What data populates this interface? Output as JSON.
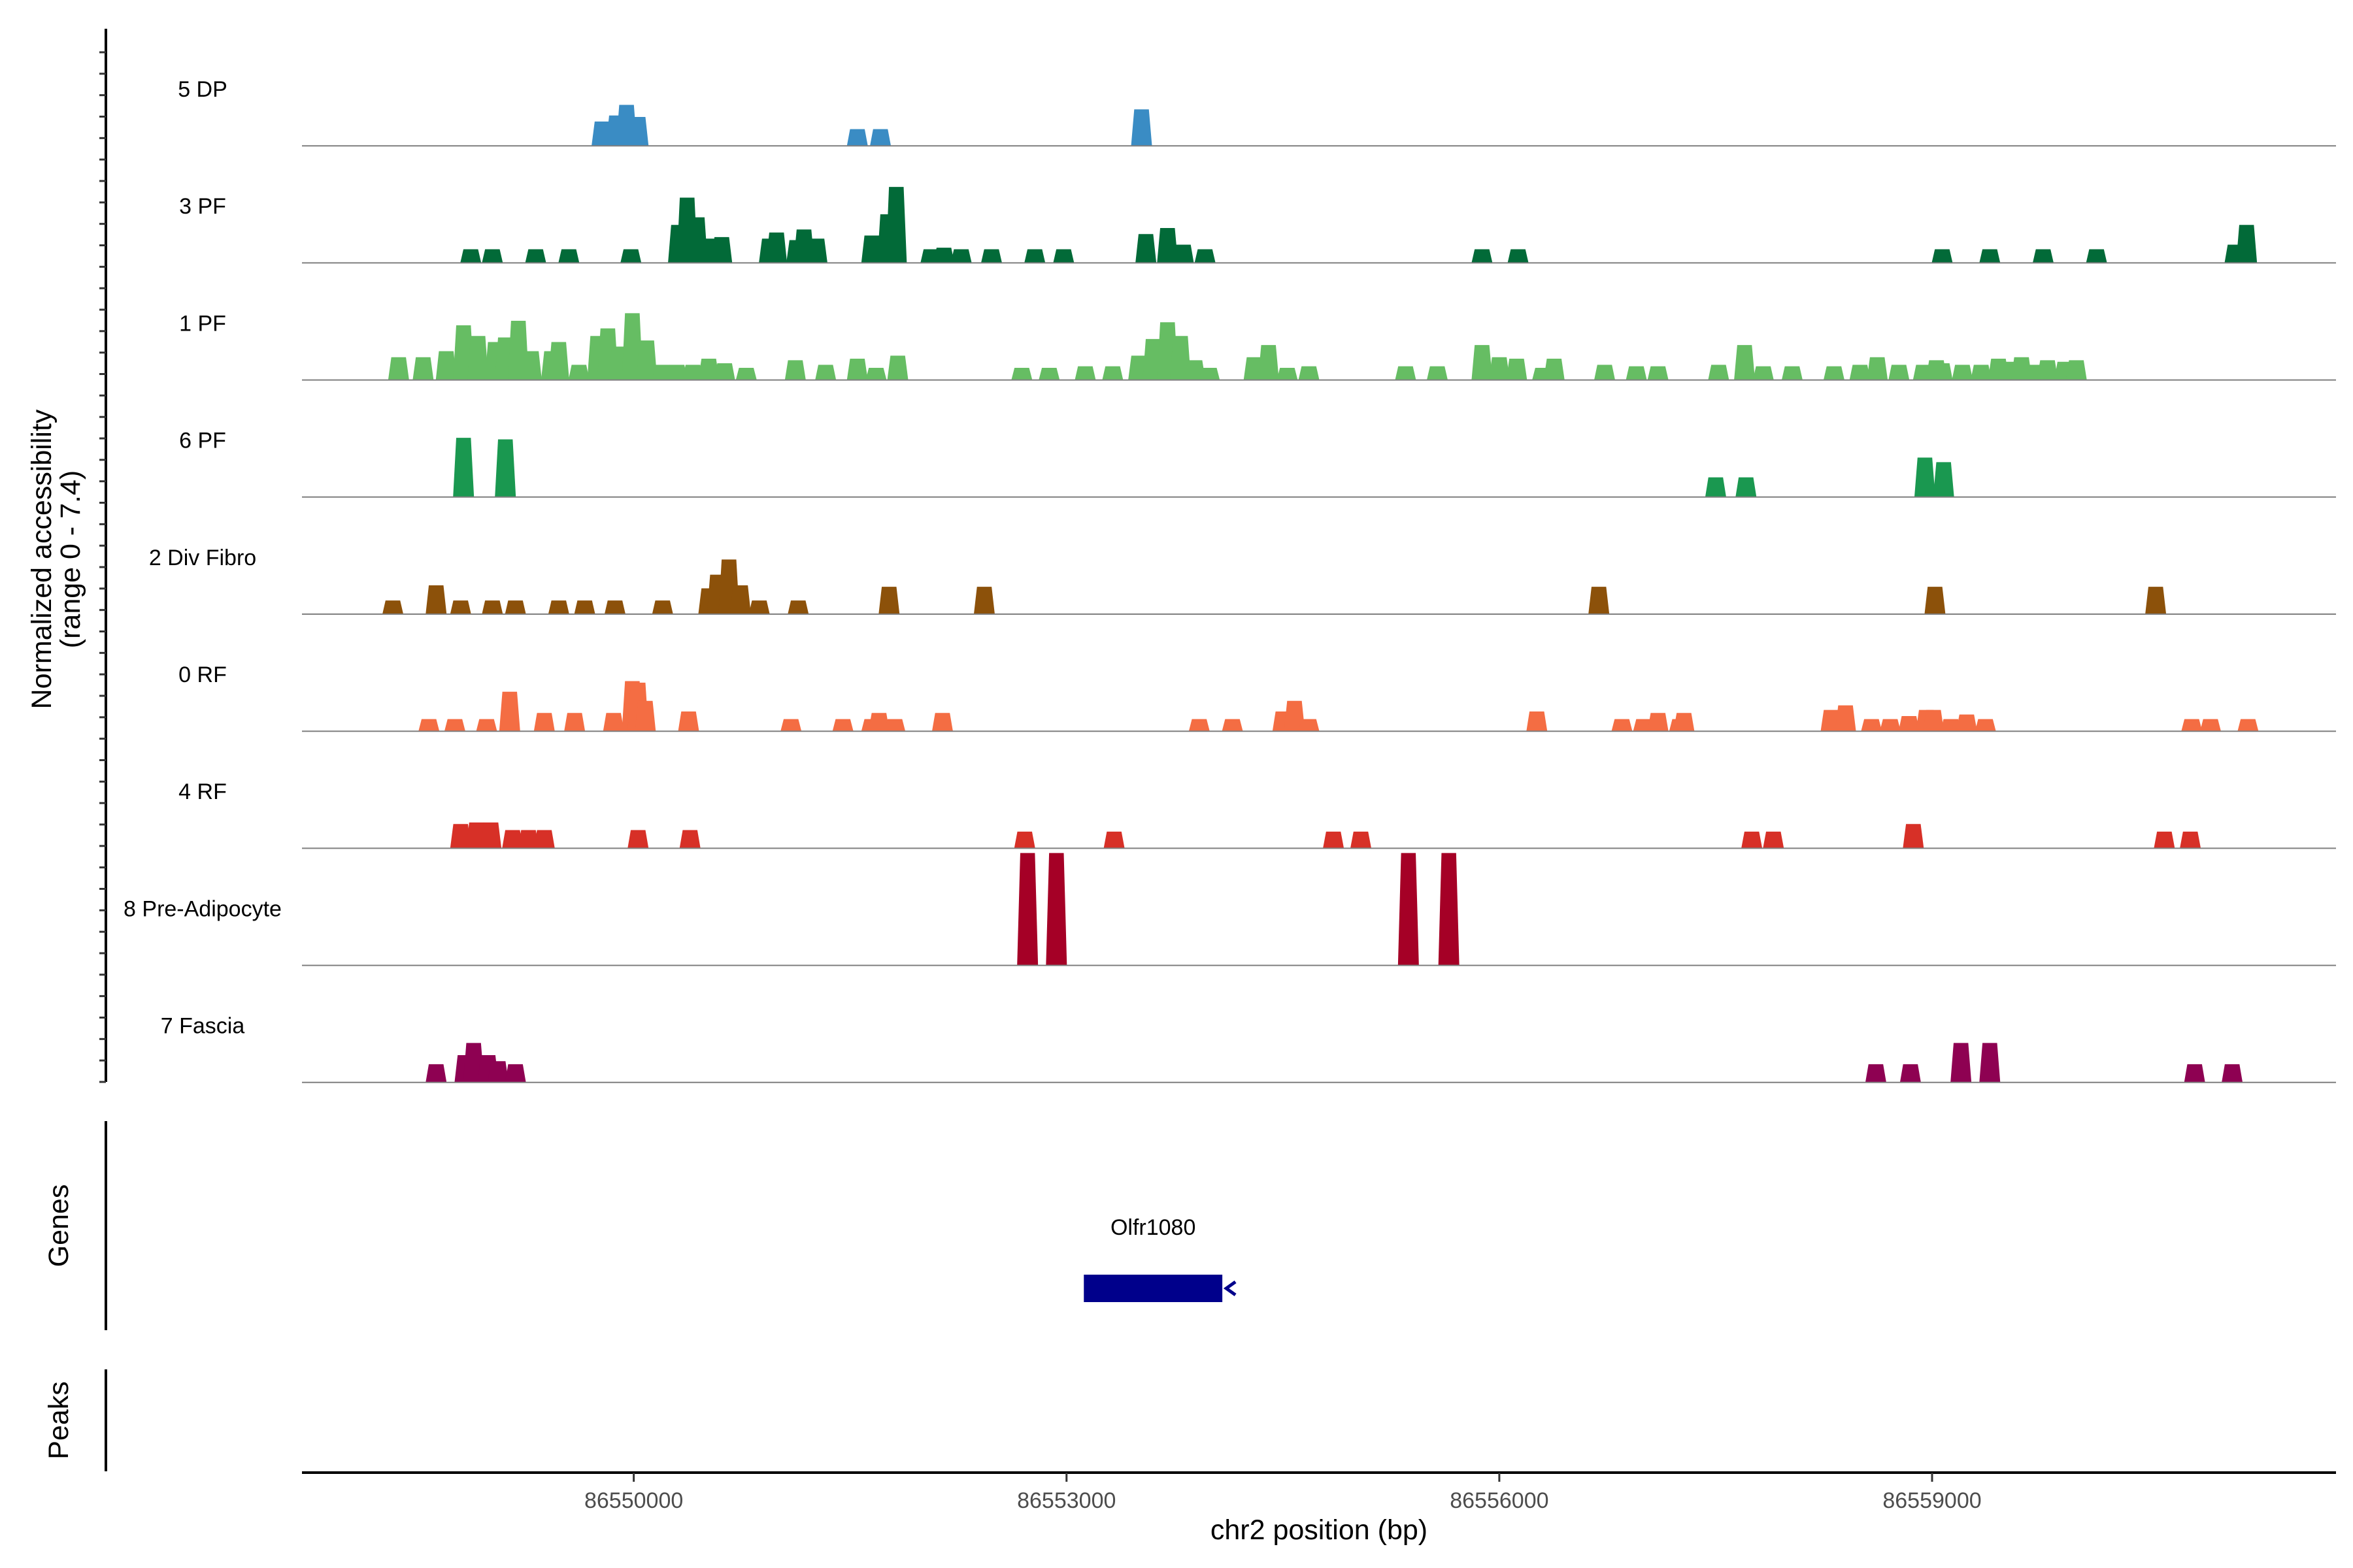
{
  "chart_data": {
    "type": "area",
    "title": "",
    "xlabel": "chr2 position (bp)",
    "ylabel_line1": "Normalized accessibility",
    "ylabel_line2": "(range 0 - 7.4)",
    "genes_axis_label": "Genes",
    "peaks_axis_label": "Peaks",
    "y_range": [
      0,
      7.4
    ],
    "xlim": [
      86547700,
      86561800
    ],
    "x_ticks": [
      86550000,
      86553000,
      86556000,
      86559000
    ],
    "x_tick_labels": [
      "86550000",
      "86553000",
      "86556000",
      "86559000"
    ],
    "gene": {
      "name": "Olfr1080",
      "start": 86553120,
      "end": 86554080,
      "strand": "-"
    },
    "peaks": [],
    "tracks": [
      {
        "name": "5 DP",
        "color": "#3a8cc4",
        "points": [
          [
            86549780,
            1.6
          ],
          [
            86549880,
            2.0
          ],
          [
            86549950,
            2.7
          ],
          [
            86550030,
            1.9
          ],
          [
            86551550,
            1.1
          ],
          [
            86551710,
            1.1
          ],
          [
            86553520,
            2.4
          ]
        ]
      },
      {
        "name": "3 PF",
        "color": "#026a38",
        "points": [
          [
            86548870,
            0.9
          ],
          [
            86549020,
            0.9
          ],
          [
            86549320,
            0.9
          ],
          [
            86549550,
            0.9
          ],
          [
            86549980,
            0.9
          ],
          [
            86550310,
            2.5
          ],
          [
            86550370,
            4.3
          ],
          [
            86550440,
            3.0
          ],
          [
            86550540,
            1.6
          ],
          [
            86550610,
            1.7
          ],
          [
            86550940,
            1.6
          ],
          [
            86550990,
            2.0
          ],
          [
            86551130,
            1.5
          ],
          [
            86551180,
            2.2
          ],
          [
            86551270,
            1.6
          ],
          [
            86551650,
            1.8
          ],
          [
            86551760,
            3.2
          ],
          [
            86551820,
            5.0
          ],
          [
            86552060,
            0.9
          ],
          [
            86552150,
            1.0
          ],
          [
            86552270,
            0.9
          ],
          [
            86552480,
            0.9
          ],
          [
            86552780,
            0.9
          ],
          [
            86552980,
            0.9
          ],
          [
            86553550,
            1.9
          ],
          [
            86553700,
            2.3
          ],
          [
            86553810,
            1.2
          ],
          [
            86553960,
            0.9
          ],
          [
            86555880,
            0.9
          ],
          [
            86556130,
            0.9
          ],
          [
            86559070,
            0.9
          ],
          [
            86559400,
            0.9
          ],
          [
            86559770,
            0.9
          ],
          [
            86560140,
            0.9
          ],
          [
            86561100,
            1.2
          ],
          [
            86561180,
            2.5
          ]
        ]
      },
      {
        "name": "1 PF",
        "color": "#66bd63",
        "points": [
          [
            86548370,
            1.5
          ],
          [
            86548540,
            1.5
          ],
          [
            86548700,
            1.9
          ],
          [
            86548820,
            3.6
          ],
          [
            86548920,
            2.9
          ],
          [
            86549040,
            2.5
          ],
          [
            86549110,
            2.8
          ],
          [
            86549200,
            3.9
          ],
          [
            86549290,
            1.9
          ],
          [
            86549430,
            1.9
          ],
          [
            86549480,
            2.5
          ],
          [
            86549620,
            1.0
          ],
          [
            86549750,
            2.9
          ],
          [
            86549820,
            3.4
          ],
          [
            86549900,
            2.2
          ],
          [
            86549990,
            4.4
          ],
          [
            86550090,
            2.6
          ],
          [
            86550200,
            1.0
          ],
          [
            86550300,
            1.0
          ],
          [
            86550410,
            1.0
          ],
          [
            86550520,
            1.4
          ],
          [
            86550630,
            1.1
          ],
          [
            86550780,
            0.8
          ],
          [
            86551120,
            1.3
          ],
          [
            86551330,
            1.0
          ],
          [
            86551550,
            1.4
          ],
          [
            86551680,
            0.8
          ],
          [
            86551830,
            1.6
          ],
          [
            86552690,
            0.8
          ],
          [
            86552880,
            0.8
          ],
          [
            86553130,
            0.9
          ],
          [
            86553320,
            0.9
          ],
          [
            86553500,
            1.6
          ],
          [
            86553600,
            2.7
          ],
          [
            86553700,
            3.8
          ],
          [
            86553790,
            2.9
          ],
          [
            86553890,
            1.3
          ],
          [
            86553990,
            0.8
          ],
          [
            86554300,
            1.5
          ],
          [
            86554400,
            2.3
          ],
          [
            86554530,
            0.8
          ],
          [
            86554680,
            0.9
          ],
          [
            86555350,
            0.9
          ],
          [
            86555570,
            0.9
          ],
          [
            86555880,
            2.3
          ],
          [
            86556000,
            1.5
          ],
          [
            86556120,
            1.4
          ],
          [
            86556300,
            0.8
          ],
          [
            86556380,
            1.4
          ],
          [
            86556730,
            1.0
          ],
          [
            86556950,
            0.9
          ],
          [
            86557100,
            0.9
          ],
          [
            86557520,
            1.0
          ],
          [
            86557700,
            2.3
          ],
          [
            86557830,
            0.9
          ],
          [
            86558030,
            0.9
          ],
          [
            86558320,
            0.9
          ],
          [
            86558500,
            1.0
          ],
          [
            86558620,
            1.5
          ],
          [
            86558770,
            1.0
          ],
          [
            86558940,
            1.0
          ],
          [
            86559030,
            1.3
          ],
          [
            86559070,
            1.1
          ],
          [
            86559210,
            1.0
          ],
          [
            86559340,
            1.0
          ],
          [
            86559460,
            1.4
          ],
          [
            86559530,
            1.2
          ],
          [
            86559620,
            1.5
          ],
          [
            86559720,
            1.0
          ],
          [
            86559800,
            1.3
          ],
          [
            86559920,
            1.2
          ],
          [
            86560000,
            1.3
          ]
        ]
      },
      {
        "name": "6 PF",
        "color": "#1a9850",
        "points": [
          [
            86548820,
            3.9
          ],
          [
            86549110,
            3.8
          ],
          [
            86557500,
            1.3
          ],
          [
            86557710,
            1.3
          ],
          [
            86558950,
            2.6
          ],
          [
            86559080,
            2.3
          ]
        ]
      },
      {
        "name": "2 Div Fibro",
        "color": "#8c510a",
        "points": [
          [
            86548330,
            0.9
          ],
          [
            86548630,
            1.9
          ],
          [
            86548800,
            0.9
          ],
          [
            86549020,
            0.9
          ],
          [
            86549180,
            0.9
          ],
          [
            86549480,
            0.9
          ],
          [
            86549660,
            0.9
          ],
          [
            86549870,
            0.9
          ],
          [
            86550200,
            0.9
          ],
          [
            86550520,
            1.7
          ],
          [
            86550580,
            2.6
          ],
          [
            86550660,
            3.6
          ],
          [
            86550740,
            1.9
          ],
          [
            86550870,
            0.9
          ],
          [
            86551140,
            0.9
          ],
          [
            86551770,
            1.8
          ],
          [
            86552430,
            1.8
          ],
          [
            86556690,
            1.8
          ],
          [
            86559020,
            1.8
          ],
          [
            86560550,
            1.8
          ]
        ]
      },
      {
        "name": "0 RF",
        "color": "#f46d43",
        "points": [
          [
            86548580,
            0.8
          ],
          [
            86548760,
            0.8
          ],
          [
            86548980,
            0.8
          ],
          [
            86549140,
            2.6
          ],
          [
            86549380,
            1.2
          ],
          [
            86549590,
            1.2
          ],
          [
            86549860,
            1.2
          ],
          [
            86549990,
            3.3
          ],
          [
            86550030,
            3.2
          ],
          [
            86550080,
            2.0
          ],
          [
            86550380,
            1.3
          ],
          [
            86551090,
            0.8
          ],
          [
            86551450,
            0.8
          ],
          [
            86551650,
            0.8
          ],
          [
            86551700,
            1.2
          ],
          [
            86551810,
            0.8
          ],
          [
            86552140,
            1.2
          ],
          [
            86553920,
            0.8
          ],
          [
            86554150,
            0.8
          ],
          [
            86554500,
            1.3
          ],
          [
            86554580,
            2.0
          ],
          [
            86554680,
            0.8
          ],
          [
            86556260,
            1.3
          ],
          [
            86556850,
            0.8
          ],
          [
            86557000,
            0.8
          ],
          [
            86557100,
            1.2
          ],
          [
            86557250,
            0.8
          ],
          [
            86557280,
            1.2
          ],
          [
            86558300,
            1.4
          ],
          [
            86558400,
            1.7
          ],
          [
            86558580,
            0.8
          ],
          [
            86558710,
            0.8
          ],
          [
            86558840,
            1.0
          ],
          [
            86558960,
            1.4
          ],
          [
            86559010,
            1.4
          ],
          [
            86559130,
            0.8
          ],
          [
            86559240,
            1.1
          ],
          [
            86559370,
            0.8
          ],
          [
            86560800,
            0.8
          ],
          [
            86560930,
            0.8
          ],
          [
            86561190,
            0.8
          ]
        ]
      },
      {
        "name": "4 RF",
        "color": "#d73027",
        "points": [
          [
            86548800,
            1.6
          ],
          [
            86548910,
            1.7
          ],
          [
            86549010,
            1.7
          ],
          [
            86549160,
            1.2
          ],
          [
            86549270,
            1.2
          ],
          [
            86549380,
            1.2
          ],
          [
            86550030,
            1.2
          ],
          [
            86550390,
            1.2
          ],
          [
            86552710,
            1.1
          ],
          [
            86553330,
            1.1
          ],
          [
            86554850,
            1.1
          ],
          [
            86555040,
            1.1
          ],
          [
            86557750,
            1.1
          ],
          [
            86557900,
            1.1
          ],
          [
            86558870,
            1.6
          ],
          [
            86560610,
            1.1
          ],
          [
            86560790,
            1.1
          ]
        ]
      },
      {
        "name": "8 Pre-Adipocyte",
        "color": "#a50026",
        "points": [
          [
            86552730,
            7.4
          ],
          [
            86552930,
            7.4
          ],
          [
            86555370,
            7.4
          ],
          [
            86555650,
            7.4
          ]
        ]
      },
      {
        "name": "7 Fascia",
        "color": "#8e0152",
        "points": [
          [
            86548630,
            1.2
          ],
          [
            86548830,
            1.8
          ],
          [
            86548890,
            2.6
          ],
          [
            86548990,
            1.8
          ],
          [
            86549060,
            1.4
          ],
          [
            86549180,
            1.2
          ],
          [
            86558610,
            1.2
          ],
          [
            86558850,
            1.2
          ],
          [
            86559200,
            2.6
          ],
          [
            86559400,
            2.6
          ],
          [
            86560820,
            1.2
          ],
          [
            86561080,
            1.2
          ]
        ]
      }
    ]
  }
}
